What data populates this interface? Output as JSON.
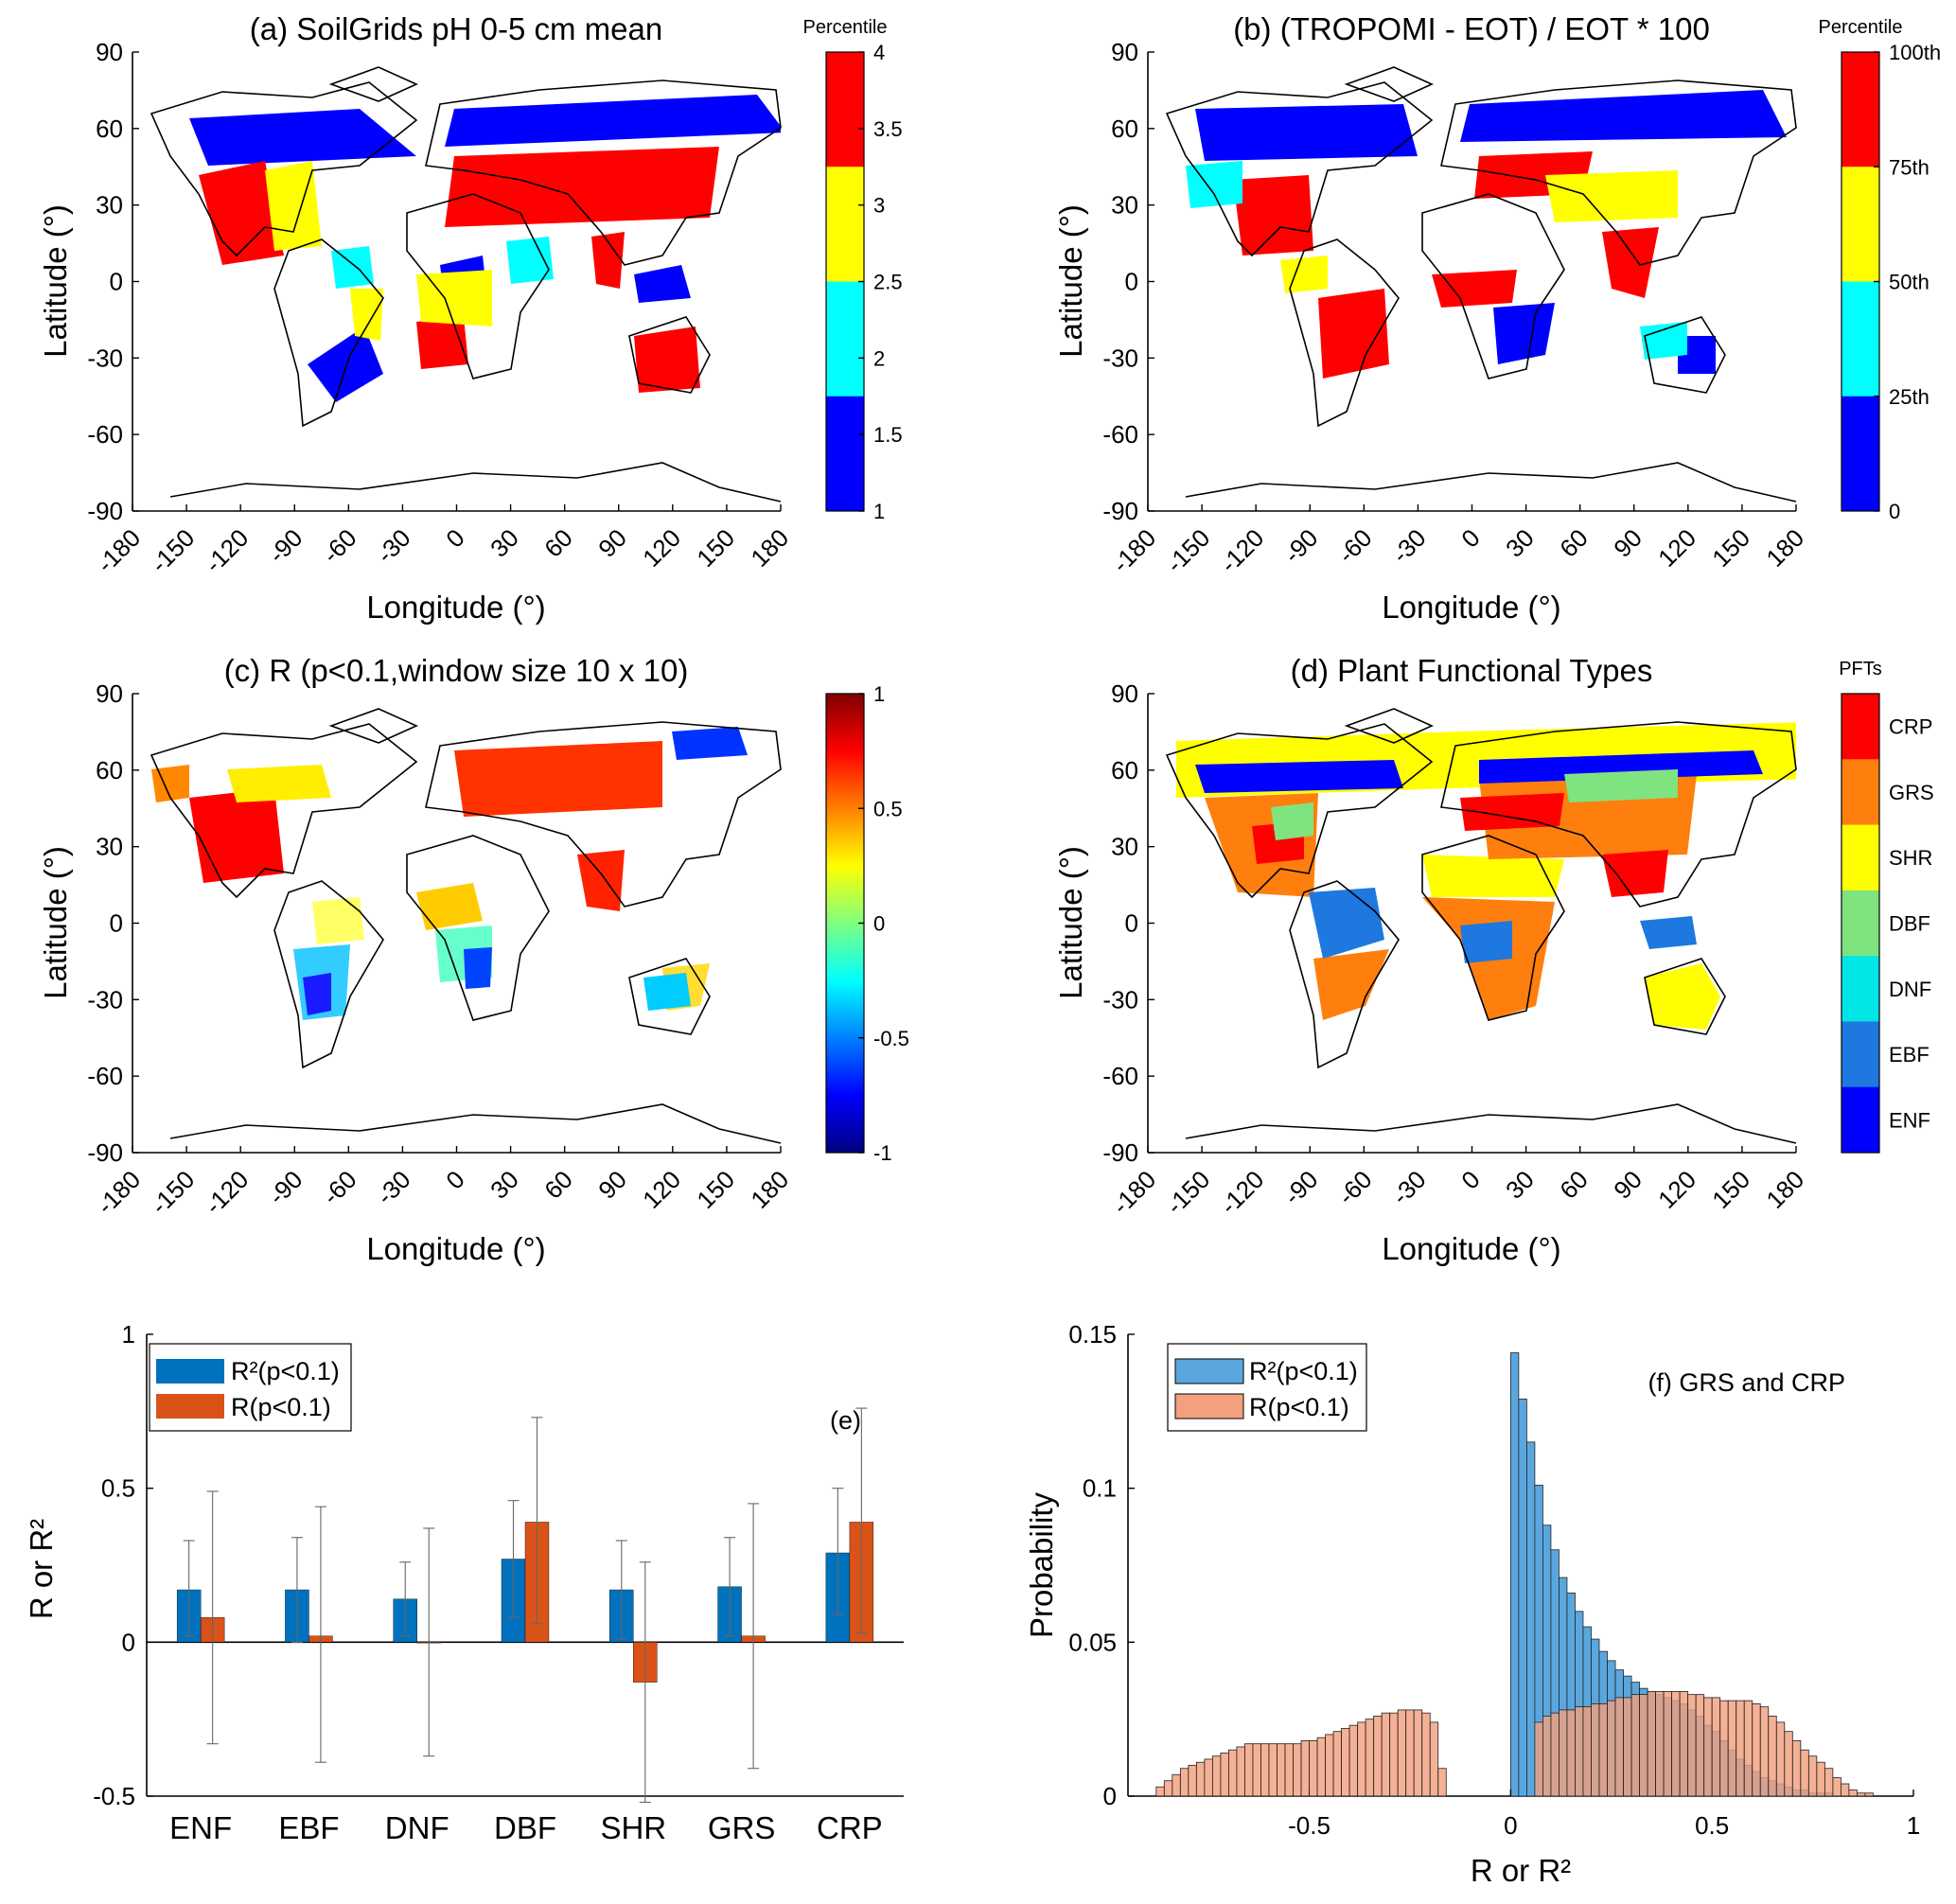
{
  "figure": {
    "panels": [
      {
        "id": "a",
        "title": "(a) SoilGrids pH 0-5 cm mean",
        "xlabel": "Longitude (°)",
        "ylabel": "Latitude (°)",
        "colorbar_title": "Percentile",
        "colorbar_ticks": [
          "4",
          "3.5",
          "3",
          "2.5",
          "2",
          "1.5",
          "1"
        ],
        "colorbar_colors": [
          "#ff0000",
          "#ffff00",
          "#00ffff",
          "#0000ff"
        ]
      },
      {
        "id": "b",
        "title": "(b) (TROPOMI - EOT) / EOT * 100",
        "xlabel": "Longitude (°)",
        "ylabel": "Latitude (°)",
        "colorbar_title": "Percentile",
        "colorbar_ticks": [
          "100th",
          "75th",
          "50th",
          "25th",
          "0"
        ],
        "colorbar_colors": [
          "#ff0000",
          "#ffff00",
          "#00ffff",
          "#0000ff"
        ]
      },
      {
        "id": "c",
        "title": "(c) R (p<0.1,window size 10 x 10)",
        "xlabel": "Longitude (°)",
        "ylabel": "Latitude (°)",
        "colorbar_title": "",
        "colorbar_ticks": [
          "1",
          "0.5",
          "0",
          "-0.5",
          "-1"
        ],
        "colorbar_colors": [
          "#800000",
          "#ff0000",
          "#ff8000",
          "#ffff00",
          "#80ff80",
          "#00ffff",
          "#0080ff",
          "#0000ff",
          "#000080"
        ]
      },
      {
        "id": "d",
        "title": "(d) Plant Functional Types",
        "xlabel": "Longitude (°)",
        "ylabel": "Latitude (°)",
        "colorbar_title": "PFTs",
        "colorbar_ticks": [
          "CRP",
          "GRS",
          "SHR",
          "DBF",
          "DNF",
          "EBF",
          "ENF"
        ],
        "colorbar_colors": [
          "#ff0000",
          "#ff7f0e",
          "#ffff00",
          "#7fe37f",
          "#00e5e5",
          "#1f78e0",
          "#0000ff"
        ]
      }
    ],
    "map_axes": {
      "lon_ticks": [
        "-180",
        "-150",
        "-120",
        "-90",
        "-60",
        "-30",
        "0",
        "30",
        "60",
        "90",
        "120",
        "150",
        "180"
      ],
      "lat_ticks": [
        "90",
        "60",
        "30",
        "0",
        "-30",
        "-60",
        "-90"
      ]
    }
  },
  "chart_data": [
    {
      "type": "bar",
      "panel": "e",
      "annotation": "(e)",
      "ylabel": "R or R²",
      "categories": [
        "ENF",
        "EBF",
        "DNF",
        "DBF",
        "SHR",
        "GRS",
        "CRP"
      ],
      "ylim": [
        -0.5,
        1
      ],
      "yticks": [
        "1",
        "0.5",
        "0",
        "-0.5"
      ],
      "series": [
        {
          "name": "R²(p<0.1)",
          "color": "#0072bd",
          "values": [
            0.17,
            0.17,
            0.14,
            0.27,
            0.17,
            0.18,
            0.29
          ],
          "err_low": [
            0.02,
            0.0,
            0.02,
            0.08,
            0.01,
            0.02,
            0.09
          ],
          "err_high": [
            0.33,
            0.34,
            0.26,
            0.46,
            0.33,
            0.34,
            0.5
          ]
        },
        {
          "name": "R(p<0.1)",
          "color": "#d95319",
          "values": [
            0.08,
            0.02,
            0.0,
            0.39,
            -0.13,
            0.02,
            0.39
          ],
          "err_low": [
            -0.33,
            -0.39,
            -0.37,
            0.06,
            -0.52,
            -0.41,
            0.03
          ],
          "err_high": [
            0.49,
            0.44,
            0.37,
            0.73,
            0.26,
            0.45,
            0.76
          ]
        }
      ]
    },
    {
      "type": "histogram",
      "panel": "f",
      "title": "(f) GRS and CRP",
      "xlabel": "R or R²",
      "ylabel": "Probability",
      "xlim": [
        -0.95,
        1.0
      ],
      "ylim": [
        0,
        0.15
      ],
      "xticks": [
        "-0.5",
        "0",
        "0.5",
        "1"
      ],
      "yticks": [
        "0.15",
        "0.1",
        "0.05",
        "0"
      ],
      "bin_width": 0.02,
      "series": [
        {
          "name": "R²(p<0.1)",
          "color": "#5aa7df",
          "bin_start": 0.0,
          "values": [
            0.144,
            0.129,
            0.115,
            0.101,
            0.088,
            0.08,
            0.071,
            0.066,
            0.06,
            0.055,
            0.051,
            0.047,
            0.044,
            0.041,
            0.039,
            0.037,
            0.035,
            0.034,
            0.033,
            0.032,
            0.031,
            0.03,
            0.028,
            0.026,
            0.023,
            0.021,
            0.018,
            0.015,
            0.012,
            0.01,
            0.008,
            0.006,
            0.005,
            0.004,
            0.003,
            0.002,
            0.002,
            0.001,
            0.001,
            0.001
          ]
        },
        {
          "name": "R(p<0.1)",
          "color": "#f2a07e",
          "bin_start": -0.88,
          "values": [
            0.003,
            0.005,
            0.007,
            0.009,
            0.01,
            0.011,
            0.012,
            0.013,
            0.014,
            0.015,
            0.016,
            0.017,
            0.017,
            0.017,
            0.017,
            0.017,
            0.017,
            0.017,
            0.018,
            0.018,
            0.019,
            0.02,
            0.021,
            0.022,
            0.023,
            0.024,
            0.025,
            0.026,
            0.027,
            0.027,
            0.028,
            0.028,
            0.028,
            0.027,
            0.024,
            0.009,
            0.0,
            0.0,
            0.0,
            0.0,
            0.0,
            0.0,
            0.0,
            0.0,
            0.0,
            0.0,
            0.0,
            0.024,
            0.026,
            0.027,
            0.028,
            0.028,
            0.029,
            0.029,
            0.03,
            0.03,
            0.031,
            0.032,
            0.032,
            0.033,
            0.033,
            0.034,
            0.034,
            0.034,
            0.034,
            0.034,
            0.033,
            0.033,
            0.032,
            0.032,
            0.031,
            0.031,
            0.031,
            0.031,
            0.03,
            0.029,
            0.026,
            0.024,
            0.021,
            0.018,
            0.015,
            0.013,
            0.011,
            0.009,
            0.006,
            0.004,
            0.002,
            0.001,
            0.001,
            0.0
          ]
        }
      ]
    }
  ]
}
